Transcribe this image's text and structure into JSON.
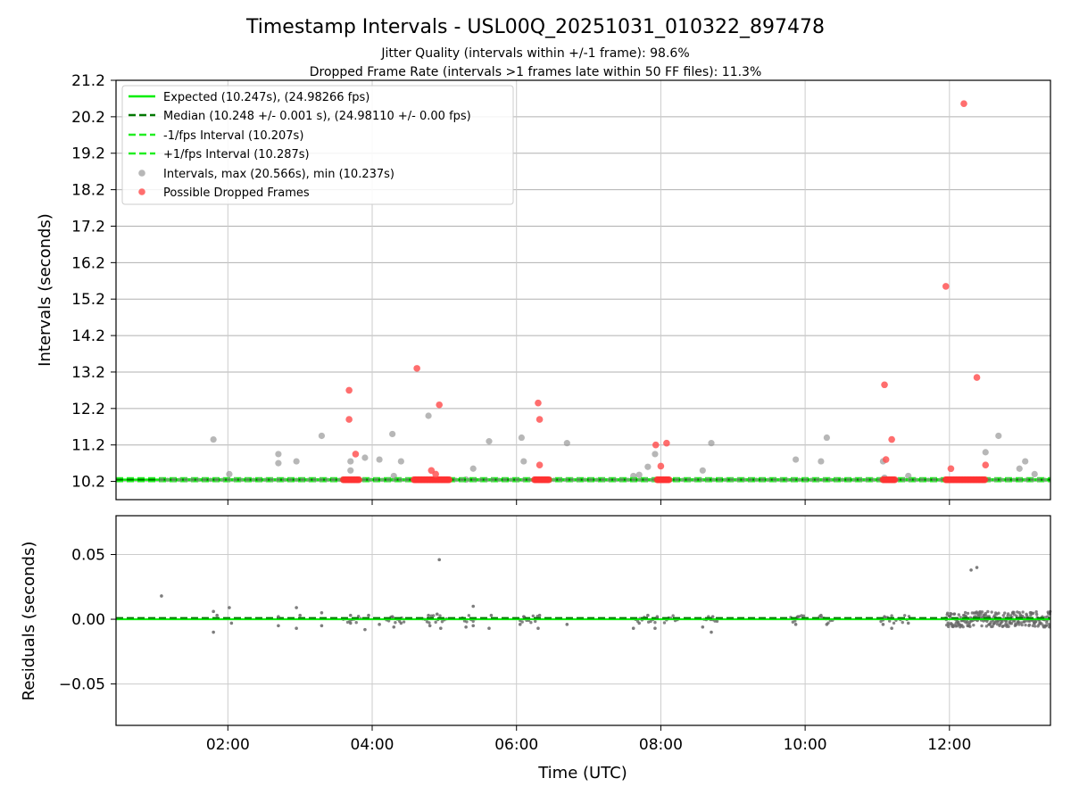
{
  "chart_data": {
    "type": "scatter",
    "title": "Timestamp Intervals - USL00Q_20251031_010322_897478",
    "subtitle_jitter": "Jitter Quality (intervals within +/-1 frame): 98.6%",
    "subtitle_dropped": "Dropped Frame Rate (intervals >1 frames late within 50 FF files): 11.3%",
    "xlabel": "Time (UTC)",
    "x_units": "hours UTC",
    "xlim": [
      0.45,
      13.4
    ],
    "x_ticks": [
      2,
      4,
      6,
      8,
      10,
      12
    ],
    "x_tick_labels": [
      "02:00",
      "04:00",
      "06:00",
      "08:00",
      "10:00",
      "12:00"
    ],
    "top": {
      "ylabel": "Intervals (seconds)",
      "ylim": [
        9.7,
        21.2
      ],
      "y_ticks": [
        10.2,
        11.2,
        12.2,
        13.2,
        14.2,
        15.2,
        16.2,
        17.2,
        18.2,
        19.2,
        20.2,
        21.2
      ],
      "y_tick_labels": [
        "10.2",
        "11.2",
        "12.2",
        "13.2",
        "14.2",
        "15.2",
        "16.2",
        "17.2",
        "18.2",
        "19.2",
        "20.2",
        "21.2"
      ],
      "expected": 10.247,
      "median": 10.248,
      "minus_interval": 10.207,
      "plus_interval": 10.287,
      "baseline_start": 1.08,
      "legend": [
        {
          "label": "Expected (10.247s), (24.98266 fps)",
          "kind": "solid-line",
          "color": "#00ee00"
        },
        {
          "label": "Median (10.248 +/- 0.001 s), (24.98110 +/- 0.00 fps)",
          "kind": "dashed-line",
          "color": "#007700"
        },
        {
          "label": "-1/fps Interval (10.207s)",
          "kind": "dashed-line",
          "color": "#22ee22"
        },
        {
          "label": "+1/fps Interval (10.287s)",
          "kind": "dashed-line",
          "color": "#22ee22"
        },
        {
          "label": "Intervals, max (20.566s), min (10.237s)",
          "kind": "marker",
          "color": "#999999"
        },
        {
          "label": "Possible Dropped Frames",
          "kind": "marker",
          "color": "#ff5555"
        }
      ],
      "intervals": [
        [
          1.8,
          11.35
        ],
        [
          2.02,
          10.4
        ],
        [
          2.7,
          10.95
        ],
        [
          2.7,
          10.7
        ],
        [
          2.95,
          10.75
        ],
        [
          3.3,
          11.45
        ],
        [
          3.7,
          10.5
        ],
        [
          3.7,
          10.75
        ],
        [
          3.9,
          10.85
        ],
        [
          4.1,
          10.8
        ],
        [
          4.28,
          11.5
        ],
        [
          4.3,
          10.35
        ],
        [
          4.4,
          10.75
        ],
        [
          4.78,
          12.0
        ],
        [
          5.3,
          10.25
        ],
        [
          5.4,
          10.55
        ],
        [
          5.62,
          11.3
        ],
        [
          6.07,
          11.4
        ],
        [
          6.1,
          10.75
        ],
        [
          6.7,
          11.25
        ],
        [
          7.62,
          10.35
        ],
        [
          7.7,
          10.38
        ],
        [
          7.82,
          10.6
        ],
        [
          7.92,
          10.95
        ],
        [
          8.58,
          10.5
        ],
        [
          8.7,
          11.25
        ],
        [
          9.87,
          10.8
        ],
        [
          10.22,
          10.75
        ],
        [
          10.3,
          11.4
        ],
        [
          11.08,
          10.75
        ],
        [
          11.1,
          10.3
        ],
        [
          11.43,
          10.35
        ],
        [
          12.5,
          11.0
        ],
        [
          12.68,
          11.45
        ],
        [
          12.97,
          10.55
        ],
        [
          13.05,
          10.75
        ],
        [
          13.18,
          10.4
        ]
      ],
      "dropped_points": [
        [
          3.68,
          12.7
        ],
        [
          3.68,
          11.9
        ],
        [
          3.77,
          10.95
        ],
        [
          4.62,
          13.3
        ],
        [
          4.82,
          10.5
        ],
        [
          4.88,
          10.4
        ],
        [
          4.93,
          12.3
        ],
        [
          6.3,
          12.35
        ],
        [
          6.32,
          11.9
        ],
        [
          6.32,
          10.65
        ],
        [
          7.93,
          11.2
        ],
        [
          8.0,
          10.62
        ],
        [
          8.08,
          11.25
        ],
        [
          11.1,
          12.85
        ],
        [
          11.12,
          10.8
        ],
        [
          11.2,
          11.35
        ],
        [
          11.95,
          15.55
        ],
        [
          12.02,
          10.55
        ],
        [
          12.2,
          20.56
        ],
        [
          12.38,
          13.05
        ],
        [
          12.5,
          10.65
        ]
      ],
      "dropped_clusters": [
        [
          3.6,
          3.82
        ],
        [
          4.58,
          5.08
        ],
        [
          6.25,
          6.45
        ],
        [
          7.95,
          8.12
        ],
        [
          11.08,
          11.25
        ],
        [
          11.95,
          12.5
        ]
      ]
    },
    "bottom": {
      "ylabel": "Residuals (seconds)",
      "ylim": [
        -0.082,
        0.08
      ],
      "y_ticks": [
        0.05,
        0.0,
        -0.05
      ],
      "y_tick_labels": [
        "0.05",
        "0.00",
        "−0.05"
      ],
      "residuals": [
        [
          1.08,
          0.018
        ],
        [
          1.8,
          0.006
        ],
        [
          1.8,
          -0.01
        ],
        [
          1.85,
          0.003
        ],
        [
          2.02,
          0.009
        ],
        [
          2.05,
          -0.003
        ],
        [
          2.7,
          -0.005
        ],
        [
          2.7,
          0.002
        ],
        [
          2.95,
          0.009
        ],
        [
          2.95,
          -0.007
        ],
        [
          3.0,
          0.003
        ],
        [
          3.3,
          0.005
        ],
        [
          3.3,
          -0.005
        ],
        [
          3.7,
          -0.003
        ],
        [
          3.7,
          0.003
        ],
        [
          3.9,
          -0.008
        ],
        [
          3.95,
          0.003
        ],
        [
          4.1,
          -0.004
        ],
        [
          4.28,
          0.002
        ],
        [
          4.3,
          -0.006
        ],
        [
          4.4,
          -0.003
        ],
        [
          4.78,
          0.003
        ],
        [
          4.8,
          -0.005
        ],
        [
          4.9,
          0.004
        ],
        [
          4.93,
          0.046
        ],
        [
          4.95,
          -0.007
        ],
        [
          5.3,
          -0.006
        ],
        [
          5.4,
          0.01
        ],
        [
          5.4,
          -0.005
        ],
        [
          5.62,
          -0.007
        ],
        [
          5.65,
          0.003
        ],
        [
          6.05,
          -0.004
        ],
        [
          6.1,
          0.002
        ],
        [
          6.3,
          -0.007
        ],
        [
          6.32,
          0.003
        ],
        [
          6.7,
          -0.004
        ],
        [
          7.62,
          -0.007
        ],
        [
          7.7,
          -0.003
        ],
        [
          7.82,
          0.003
        ],
        [
          7.92,
          -0.007
        ],
        [
          7.95,
          0.002
        ],
        [
          8.58,
          -0.006
        ],
        [
          8.7,
          -0.01
        ],
        [
          8.72,
          0.002
        ],
        [
          9.87,
          -0.004
        ],
        [
          9.9,
          0.002
        ],
        [
          10.22,
          0.003
        ],
        [
          10.3,
          -0.004
        ],
        [
          11.08,
          -0.004
        ],
        [
          11.1,
          0.002
        ],
        [
          11.2,
          -0.007
        ],
        [
          11.43,
          -0.003
        ],
        [
          12.3,
          0.038
        ],
        [
          12.38,
          0.04
        ]
      ],
      "residual_clusters": [
        [
          3.6,
          3.85
        ],
        [
          4.2,
          4.45
        ],
        [
          4.7,
          5.05
        ],
        [
          5.25,
          5.45
        ],
        [
          6.05,
          6.3
        ],
        [
          7.65,
          7.95
        ],
        [
          8.05,
          8.25
        ],
        [
          8.6,
          8.8
        ],
        [
          9.8,
          10.0
        ],
        [
          10.2,
          10.4
        ],
        [
          11.05,
          11.45
        ],
        [
          11.95,
          13.4
        ]
      ]
    }
  }
}
